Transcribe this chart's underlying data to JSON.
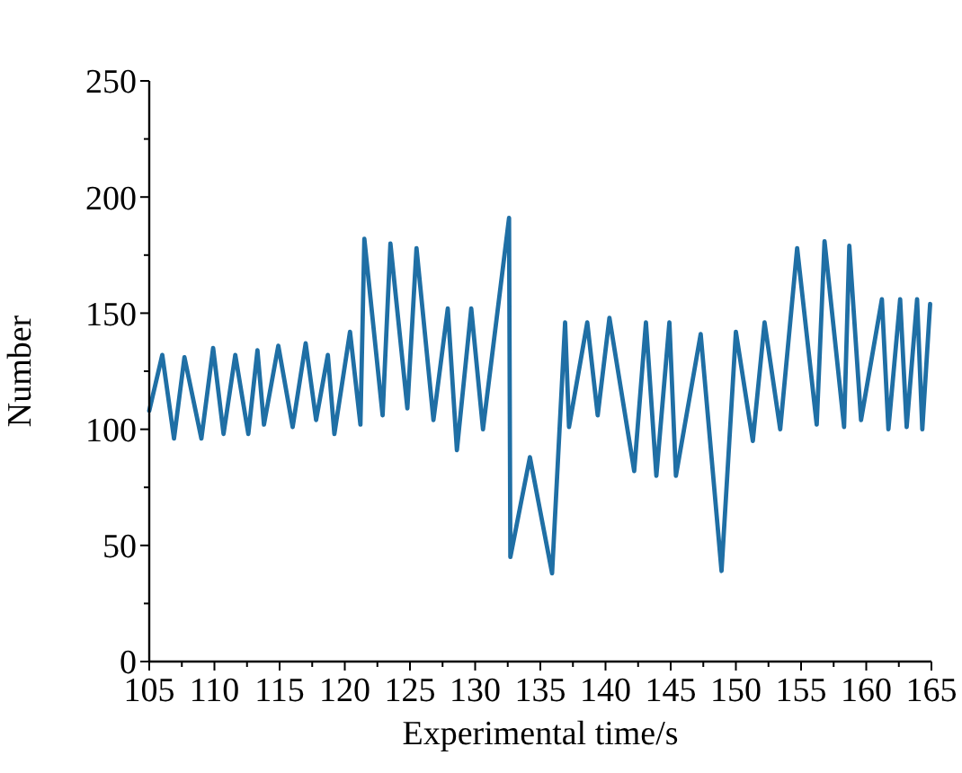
{
  "chart_data": {
    "type": "line",
    "xlabel": "Experimental time/s",
    "ylabel": "Number",
    "xlim": [
      105,
      165
    ],
    "ylim": [
      0,
      250
    ],
    "xticks": [
      105,
      {
        "value": 107.5,
        "label": null
      },
      110,
      {
        "value": 112.5,
        "label": null
      },
      115,
      {
        "value": 117.5,
        "label": null
      },
      120,
      {
        "value": 122.5,
        "label": null
      },
      125,
      {
        "value": 127.5,
        "label": null
      },
      130,
      {
        "value": 132.5,
        "label": null
      },
      135,
      {
        "value": 137.5,
        "label": null
      },
      140,
      {
        "value": 142.5,
        "label": null
      },
      145,
      {
        "value": 147.5,
        "label": null
      },
      150,
      {
        "value": 152.5,
        "label": null
      },
      155,
      {
        "value": 157.5,
        "label": null
      },
      160,
      {
        "value": 162.5,
        "label": null
      },
      165
    ],
    "yticks": [
      0,
      {
        "value": 25,
        "label": null
      },
      50,
      {
        "value": 75,
        "label": null
      },
      100,
      {
        "value": 125,
        "label": null
      },
      150,
      {
        "value": 175,
        "label": null
      },
      200,
      {
        "value": 225,
        "label": null
      },
      250
    ],
    "grid": false,
    "marker": "none",
    "line_style": "solid",
    "series": [
      {
        "color": "#1f6fa5",
        "x": [
          105,
          106,
          106.9,
          107.7,
          109,
          109.9,
          110.7,
          111.6,
          112.6,
          113.3,
          113.8,
          114.9,
          116,
          117,
          117.8,
          118.7,
          119.2,
          120.4,
          121.2,
          121.5,
          122.9,
          123.5,
          124.8,
          125.5,
          126.8,
          127.9,
          128.6,
          129.7,
          130.6,
          132.6,
          132.7,
          134.2,
          135.9,
          136.9,
          137.2,
          138.6,
          139.4,
          140.3,
          142.2,
          143.1,
          143.9,
          144.9,
          145.4,
          147.3,
          148.9,
          150,
          151.3,
          152.2,
          153.4,
          154.7,
          156.2,
          156.8,
          158.3,
          158.7,
          159.6,
          161.2,
          161.7,
          162.6,
          163.1,
          163.9,
          164.3,
          164.9
        ],
        "values": [
          108,
          132,
          96,
          131,
          96,
          135,
          98,
          132,
          98,
          134,
          102,
          136,
          101,
          137,
          104,
          132,
          98,
          142,
          102,
          182,
          106,
          180,
          109,
          178,
          104,
          152,
          91,
          152,
          100,
          191,
          45,
          88,
          38,
          146,
          101,
          146,
          106,
          148,
          82,
          146,
          80,
          146,
          80,
          141,
          39,
          142,
          95,
          146,
          100,
          178,
          102,
          181,
          101,
          179,
          104,
          156,
          100,
          156,
          101,
          156,
          100,
          154
        ]
      }
    ]
  }
}
